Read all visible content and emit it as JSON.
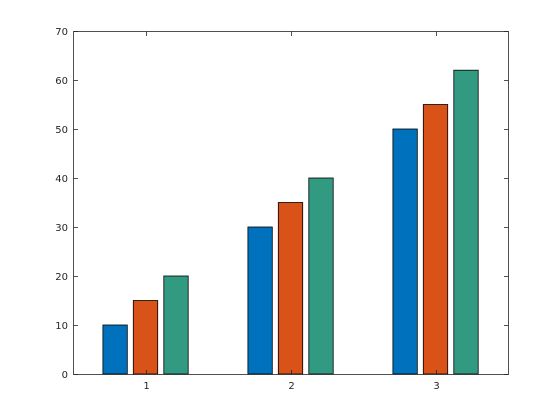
{
  "chart_data": {
    "type": "bar",
    "categories": [
      "1",
      "2",
      "3"
    ],
    "series": [
      {
        "values": [
          10,
          30,
          50
        ],
        "color": "#0072BD"
      },
      {
        "values": [
          15,
          35,
          55
        ],
        "color": "#D95319"
      },
      {
        "values": [
          20,
          40,
          62
        ],
        "color": "#329A81"
      }
    ],
    "title": "",
    "xlabel": "",
    "ylabel": "",
    "ylim": [
      0,
      70
    ],
    "yticks": [
      0,
      10,
      20,
      30,
      40,
      50,
      60,
      70
    ],
    "grid": false,
    "box": true
  }
}
